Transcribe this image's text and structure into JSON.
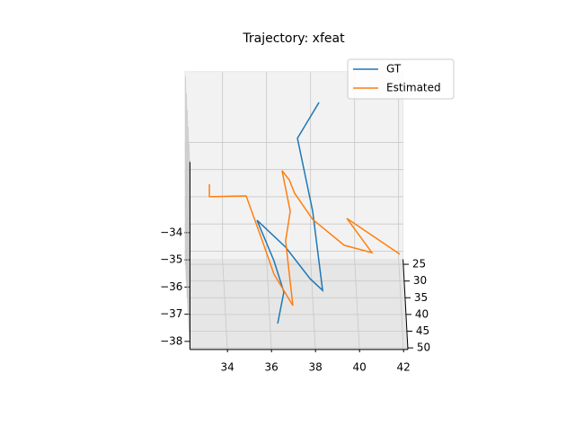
{
  "chart_data": {
    "type": "line3d",
    "title": "Trajectory: xfeat",
    "xlim": [
      32.3,
      42.2
    ],
    "ylim": [
      23.5,
      50.5
    ],
    "zlim": [
      -38.3,
      -31.4
    ],
    "xticks": [
      34,
      36,
      38,
      40,
      42
    ],
    "yticks": [
      25,
      30,
      35,
      40,
      45,
      50
    ],
    "zticks": [
      {
        "value": -34,
        "label": "−34"
      },
      {
        "value": -35,
        "label": "−35"
      },
      {
        "value": -36,
        "label": "−36"
      },
      {
        "value": -37,
        "label": "−37"
      },
      {
        "value": -38,
        "label": "−38"
      }
    ],
    "grid": true,
    "legend": "upper right",
    "series": [
      {
        "name": "GT",
        "color": "#1f77b4",
        "x": [
          36.33,
          36.61,
          36.16,
          35.39,
          36.69,
          37.8,
          38.37,
          37.92,
          37.35,
          38.33
        ],
        "y": [
          45,
          45,
          45,
          45,
          45,
          45,
          45,
          45,
          30,
          30
        ],
        "z": [
          -38.02,
          -36.86,
          -35.71,
          -34.22,
          -35.21,
          -36.37,
          -36.8,
          -33.89,
          -33.05,
          -31.73
        ]
      },
      {
        "name": "Estimated",
        "color": "#ff7f0e",
        "x": [
          33.35,
          33.35,
          35.02,
          35.59,
          36.16,
          37.02,
          36.69,
          36.9,
          36.65,
          36.98,
          37.22,
          37.92,
          39.35,
          40.61,
          39.47,
          41.88
        ],
        "y": [
          30,
          30,
          30,
          45,
          45,
          45,
          45,
          45,
          30,
          30,
          30,
          45,
          45,
          45,
          45,
          45
        ],
        "z": [
          -34.74,
          -35.2,
          -35.17,
          -34.88,
          -36.2,
          -37.36,
          -34.98,
          -33.89,
          -34.24,
          -34.58,
          -35.07,
          -34.19,
          -35.14,
          -35.41,
          -34.15,
          -35.47
        ]
      }
    ]
  }
}
